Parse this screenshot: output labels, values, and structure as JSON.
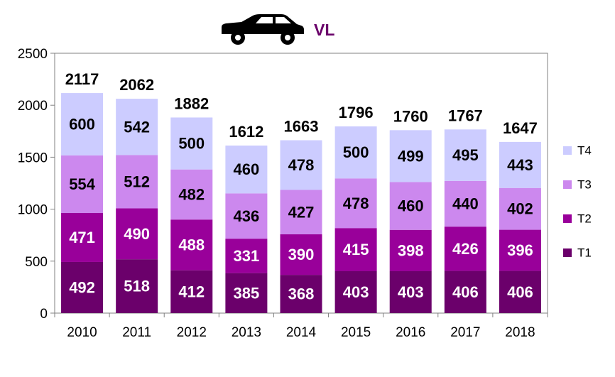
{
  "chart_data": {
    "type": "bar",
    "stacked": true,
    "title": "VL",
    "title_color": "#6a006a",
    "icon": "car-icon",
    "categories": [
      "2010",
      "2011",
      "2012",
      "2013",
      "2014",
      "2015",
      "2016",
      "2017",
      "2018"
    ],
    "series": [
      {
        "name": "T1",
        "color": "#6b006b",
        "values": [
          492,
          518,
          412,
          385,
          368,
          403,
          403,
          406,
          406
        ]
      },
      {
        "name": "T2",
        "color": "#99009a",
        "values": [
          471,
          490,
          488,
          331,
          390,
          415,
          398,
          426,
          396
        ]
      },
      {
        "name": "T3",
        "color": "#cc88ee",
        "values": [
          554,
          512,
          482,
          436,
          427,
          478,
          460,
          440,
          402
        ]
      },
      {
        "name": "T4",
        "color": "#ccccff",
        "values": [
          600,
          542,
          500,
          460,
          478,
          500,
          499,
          495,
          443
        ]
      }
    ],
    "totals": [
      2117,
      2062,
      1882,
      1612,
      1663,
      1796,
      1760,
      1767,
      1647
    ],
    "ylim": [
      0,
      2500
    ],
    "yticks": [
      0,
      500,
      1000,
      1500,
      2000,
      2500
    ],
    "legend_position": "right",
    "grid": false
  }
}
